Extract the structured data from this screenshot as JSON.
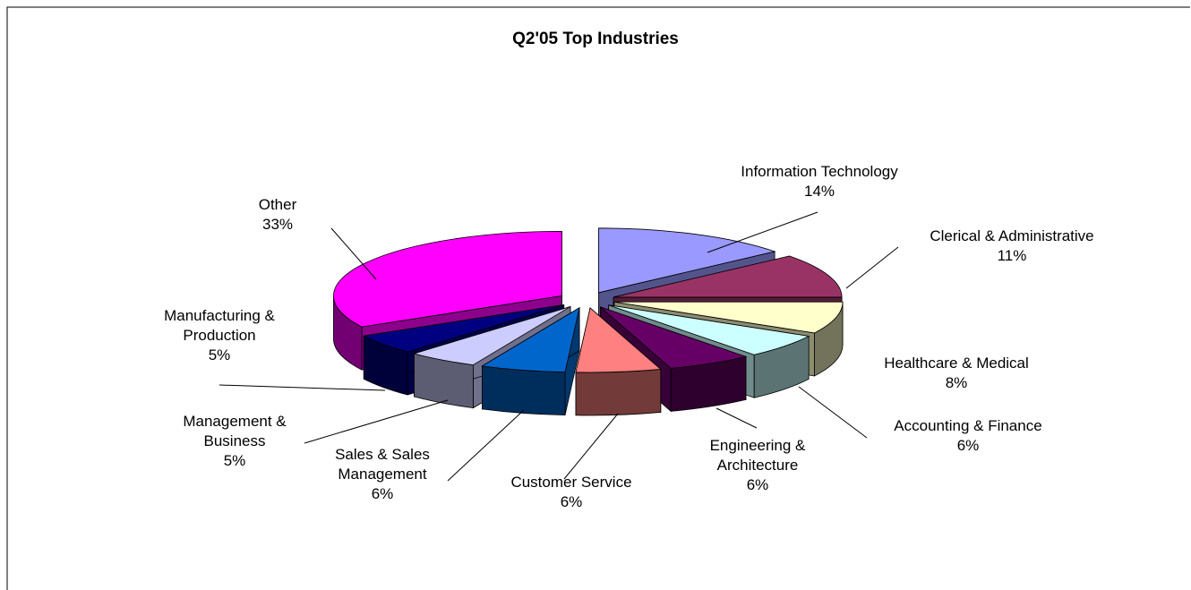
{
  "chart_data": {
    "type": "pie3d",
    "title": "Q2'05 Top Industries",
    "categories": [
      "Information Technology",
      "Clerical & Administrative",
      "Healthcare & Medical",
      "Accounting & Finance",
      "Engineering & Architecture",
      "Customer Service",
      "Sales & Sales Management",
      "Management & Business",
      "Manufacturing & Production",
      "Other"
    ],
    "values": [
      14,
      11,
      8,
      6,
      6,
      6,
      6,
      5,
      5,
      33
    ],
    "value_labels": [
      "14%",
      "11%",
      "8%",
      "6%",
      "6%",
      "6%",
      "6%",
      "5%",
      "5%",
      "33%"
    ],
    "colors": [
      "#9999ff",
      "#993366",
      "#ffffcc",
      "#ccffff",
      "#660066",
      "#ff8080",
      "#0066cc",
      "#ccccff",
      "#000080",
      "#ff00ff"
    ]
  }
}
